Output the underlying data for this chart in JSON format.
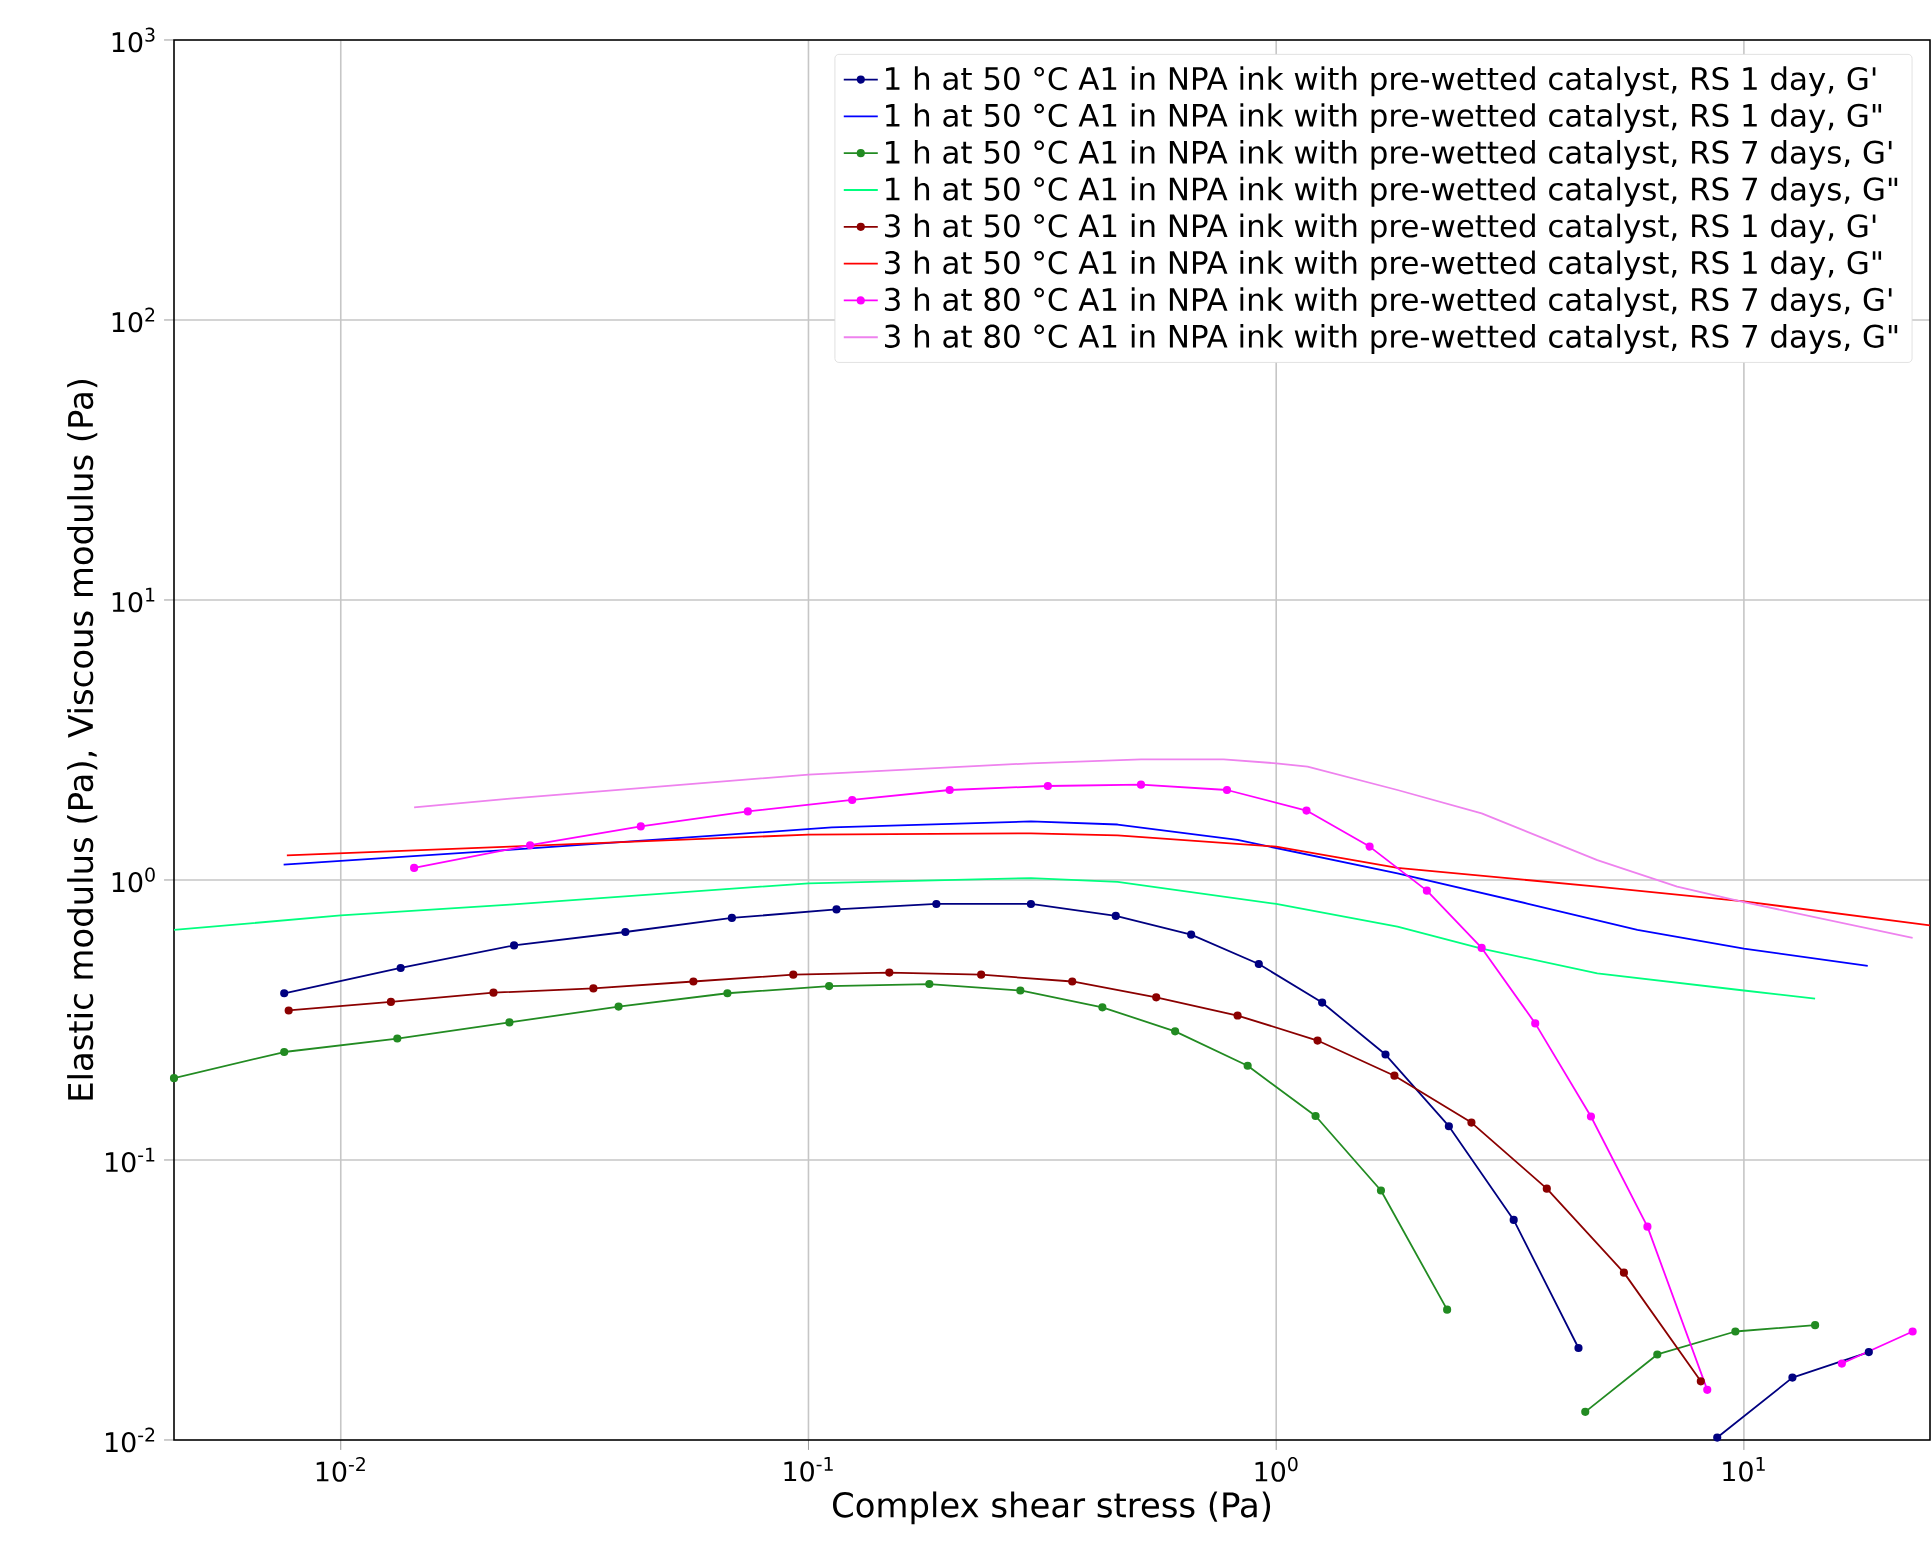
{
  "chart_data": {
    "type": "line",
    "xlabel": "Complex shear stress (Pa)",
    "ylabel": "Elastic modulus (Pa), Viscous modulus (Pa)",
    "log": "xy",
    "grid": true,
    "legend": "top right",
    "xlim": [
      0.0044,
      25
    ],
    "ylim": [
      0.01,
      1000
    ],
    "xticks": [
      {
        "value": 0.01,
        "label": "10$^{-2}$"
      },
      {
        "value": 0.1,
        "label": "10$^{-1}$"
      },
      {
        "value": 1,
        "label": "10$^{0}$"
      },
      {
        "value": 10,
        "label": "10$^{1}$"
      }
    ],
    "yticks": [
      {
        "value": 0.01,
        "label": "10$^{-2}$"
      },
      {
        "value": 0.1,
        "label": "10$^{-1}$"
      },
      {
        "value": 1,
        "label": "10$^{0}$"
      },
      {
        "value": 10,
        "label": "10$^{1}$"
      },
      {
        "value": 100,
        "label": "10$^{2}$"
      },
      {
        "value": 1000,
        "label": "10$^{3}$"
      }
    ],
    "series": [
      {
        "name": "1 h at 50 °C A1 in NPA ink with pre-wetted catalyst, RS 1 day, G'",
        "color": "#000080",
        "marker": "circle",
        "x": [
          0.00757,
          0.01343,
          0.02347,
          0.0406,
          0.0686,
          0.1148,
          0.1877,
          0.299,
          0.454,
          0.658,
          0.918,
          1.254,
          1.713,
          2.34,
          3.22,
          4.43,
          6.2,
          8.77,
          12.7,
          18.5
        ],
        "values": [
          0.394,
          0.485,
          0.584,
          0.652,
          0.732,
          0.785,
          0.821,
          0.821,
          0.744,
          0.638,
          0.501,
          0.365,
          0.238,
          0.132,
          0.0611,
          0.0213,
          null,
          0.0102,
          0.0167,
          0.0206
        ]
      },
      {
        "name": "1 h at 50 °C A1 in NPA ink with pre-wetted catalyst, RS 1 day, G\"",
        "color": "#0000ff",
        "marker": "none",
        "x": [
          0.00755,
          0.02285,
          0.1122,
          0.299,
          0.458,
          0.827,
          1.817,
          3.44,
          5.92,
          10,
          18.4
        ],
        "values": [
          1.135,
          1.28,
          1.541,
          1.619,
          1.578,
          1.39,
          1.056,
          0.824,
          0.663,
          0.569,
          0.493
        ]
      },
      {
        "name": "1 h at 50 °C A1 in NPA ink with pre-wetted catalyst, RS 7 days, G'",
        "color": "#228b22",
        "marker": "circle",
        "x": [
          0.0044,
          0.00757,
          0.01321,
          0.02294,
          0.03927,
          0.0671,
          0.1107,
          0.1813,
          0.2838,
          0.425,
          0.608,
          0.869,
          1.214,
          1.675,
          2.32,
          3.3,
          4.58,
          6.53,
          9.59,
          14.2
        ],
        "values": [
          0.196,
          0.243,
          0.2715,
          0.31,
          0.353,
          0.394,
          0.418,
          0.425,
          0.403,
          0.351,
          0.288,
          0.217,
          0.1436,
          0.0778,
          0.0292,
          null,
          0.0126,
          0.0202,
          0.0244,
          0.0257
        ]
      },
      {
        "name": "1 h at 50 °C A1 in NPA ink with pre-wetted catalyst, RS 7 days, G\"",
        "color": "#00ff7f",
        "marker": "none",
        "x": [
          0.0044,
          0.01,
          0.023,
          0.1,
          0.299,
          0.458,
          1.0,
          1.817,
          2.75,
          4.86,
          10,
          14.2
        ],
        "values": [
          0.663,
          0.747,
          0.817,
          0.973,
          1.016,
          0.984,
          0.821,
          0.682,
          0.569,
          0.464,
          0.403,
          0.377
        ]
      },
      {
        "name": "3 h at 50 °C A1 in NPA ink with pre-wetted catalyst, RS 1 day, G'",
        "color": "#8b0000",
        "marker": "circle",
        "x": [
          0.00774,
          0.0128,
          0.02121,
          0.03469,
          0.05675,
          0.0928,
          0.1489,
          0.234,
          0.3665,
          0.554,
          0.827,
          1.226,
          1.79,
          2.615,
          3.79,
          5.54,
          8.09
        ],
        "values": [
          0.342,
          0.367,
          0.396,
          0.41,
          0.434,
          0.459,
          0.467,
          0.459,
          0.434,
          0.381,
          0.328,
          0.267,
          0.2,
          0.136,
          0.079,
          0.0396,
          0.0162
        ]
      },
      {
        "name": "3 h at 50 °C A1 in NPA ink with pre-wetted catalyst, RS 1 day, G\"",
        "color": "#ff0000",
        "marker": "none",
        "x": [
          0.00767,
          0.023,
          0.1,
          0.299,
          0.458,
          1.0,
          1.817,
          4.86,
          10,
          25
        ],
        "values": [
          1.224,
          1.316,
          1.452,
          1.467,
          1.443,
          1.316,
          1.104,
          0.947,
          0.839,
          0.688
        ]
      },
      {
        "name": "3 h at 80 °C A1 in NPA ink with pre-wetted catalyst, RS 7 days, G'",
        "color": "#ff00ff",
        "marker": "circle",
        "x": [
          0.01435,
          0.0254,
          0.0438,
          0.0742,
          0.124,
          0.2004,
          0.325,
          0.514,
          0.785,
          1.161,
          1.584,
          2.1,
          2.75,
          3.58,
          4.71,
          6.22,
          8.35,
          11.6,
          16.2,
          22.95
        ],
        "values": [
          1.104,
          1.331,
          1.553,
          1.758,
          1.931,
          2.096,
          2.166,
          2.19,
          2.096,
          1.77,
          1.316,
          0.916,
          0.572,
          0.3075,
          0.143,
          0.0578,
          0.0151,
          null,
          0.01875,
          0.0244
        ]
      },
      {
        "name": "3 h at 80 °C A1 in NPA ink with pre-wetted catalyst, RS 7 days, G\"",
        "color": "#ee82ee",
        "marker": "none",
        "x": [
          0.01435,
          0.023,
          0.1,
          0.299,
          0.514,
          0.772,
          1.0,
          1.167,
          1.817,
          2.75,
          4.86,
          7.2,
          10,
          22.95
        ],
        "values": [
          1.817,
          1.953,
          2.378,
          2.61,
          2.697,
          2.697,
          2.61,
          2.54,
          2.096,
          1.729,
          1.178,
          0.947,
          0.834,
          0.621
        ]
      }
    ]
  }
}
